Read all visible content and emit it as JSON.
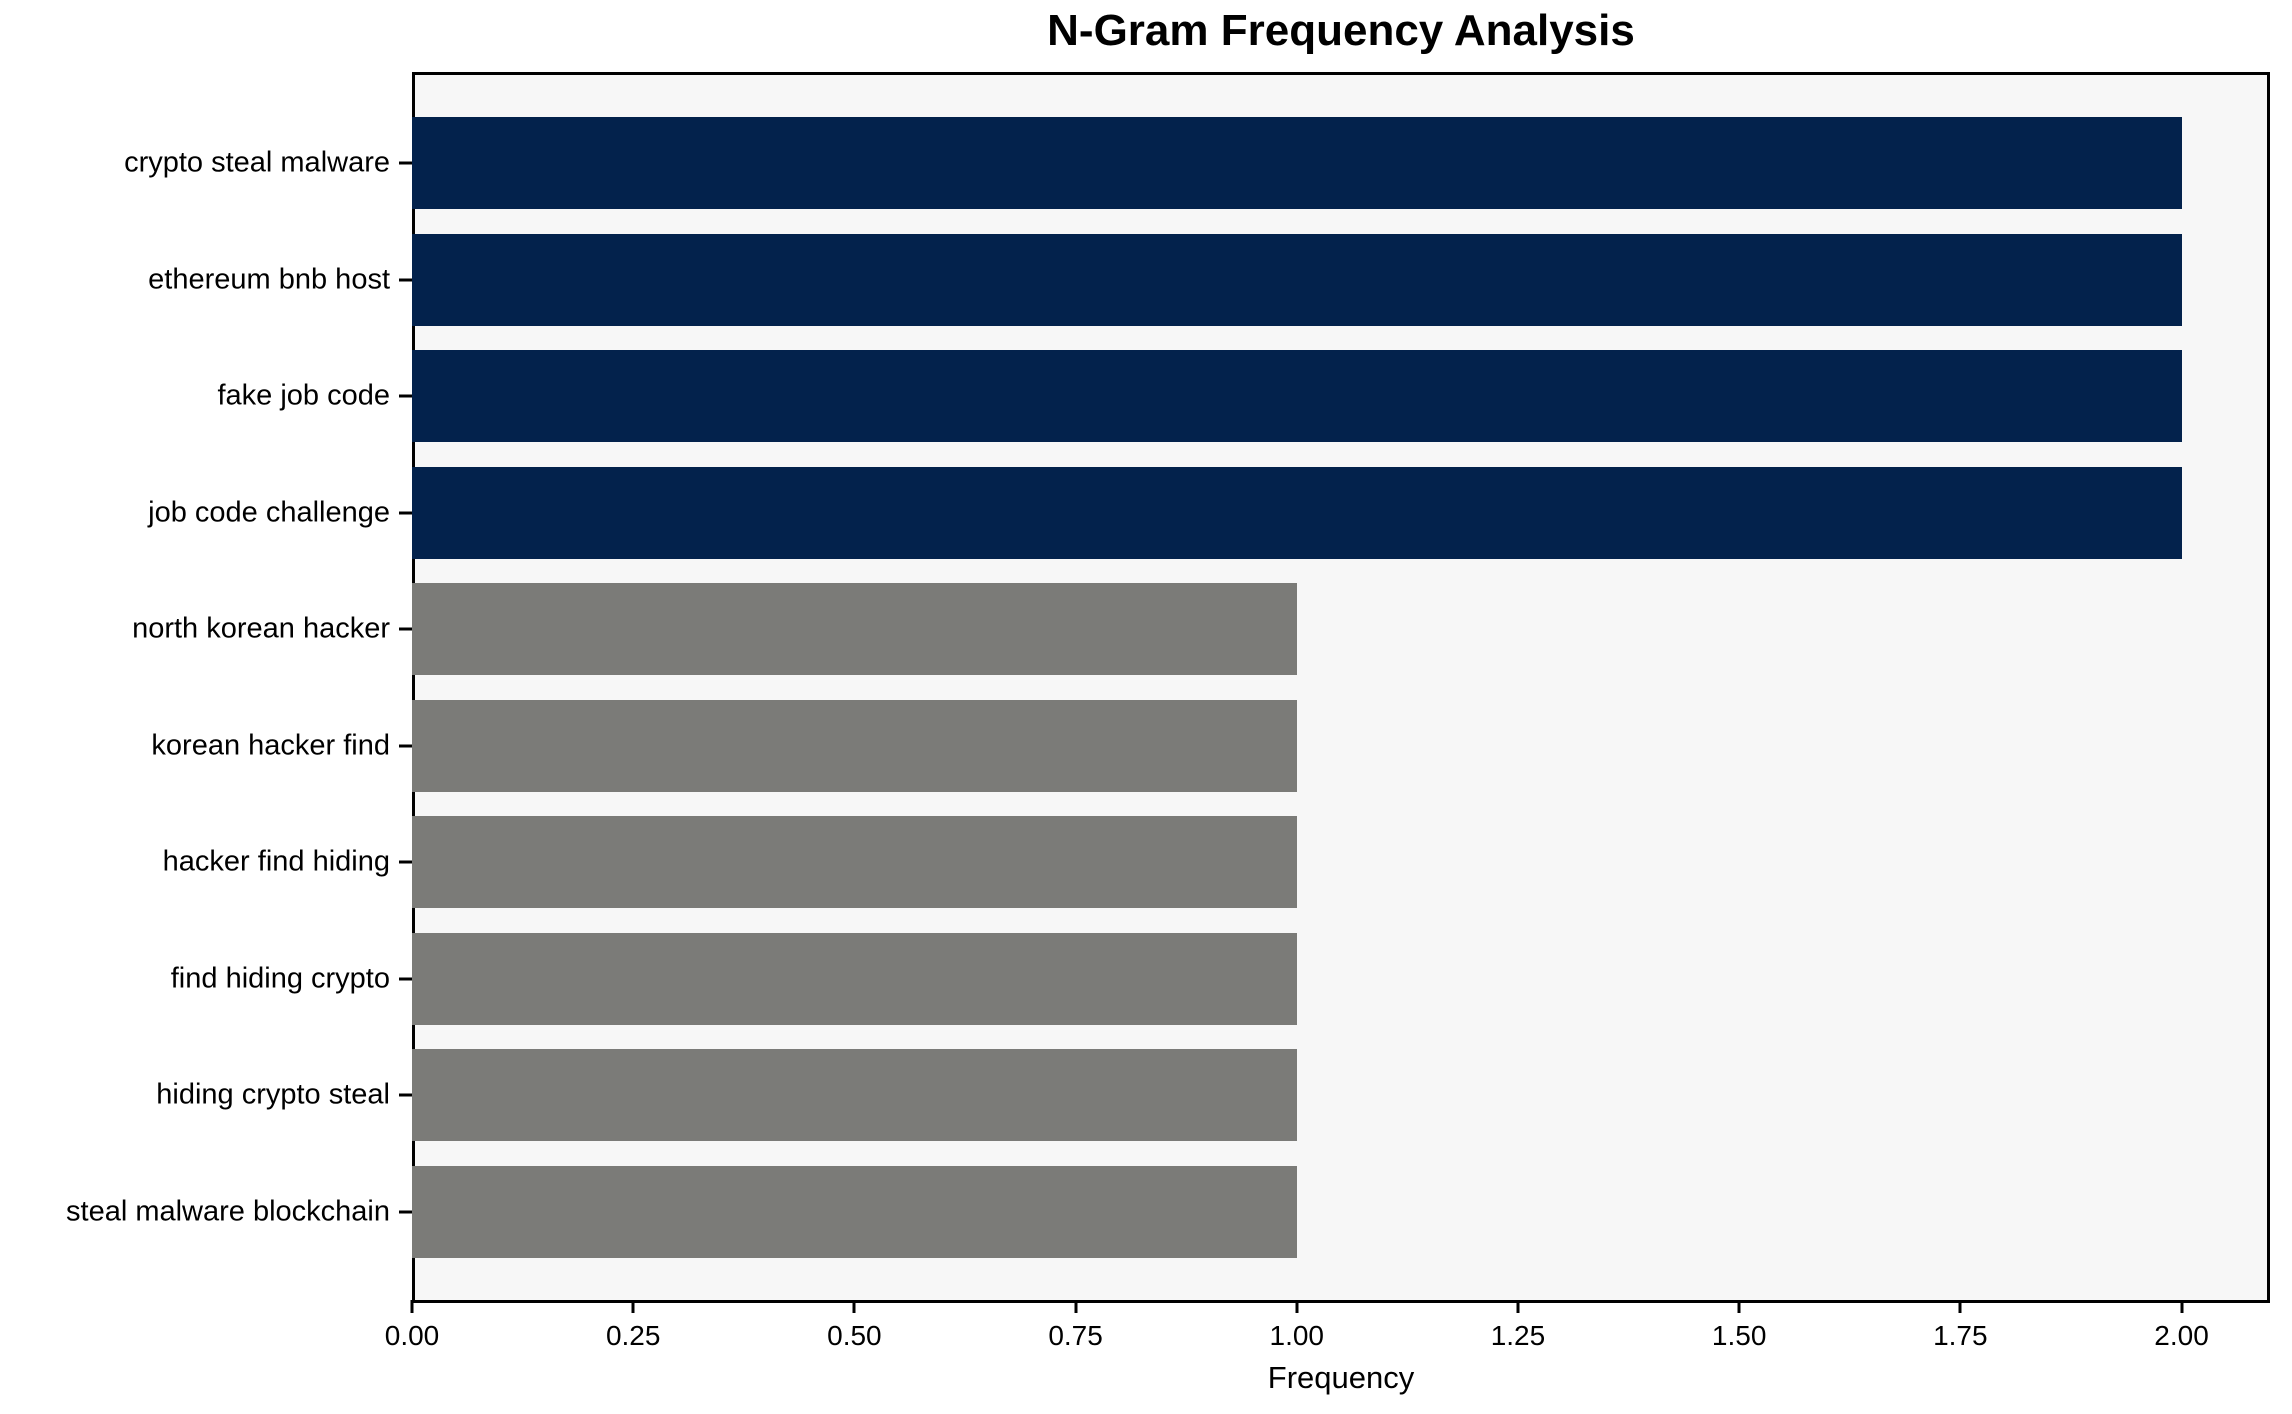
{
  "chart": {
    "title": "N-Gram Frequency Analysis",
    "xlabel": "Frequency"
  },
  "chart_data": {
    "type": "bar",
    "orientation": "horizontal",
    "title": "N-Gram Frequency Analysis",
    "xlabel": "Frequency",
    "ylabel": "",
    "categories": [
      "crypto steal malware",
      "ethereum bnb host",
      "fake job code",
      "job code challenge",
      "north korean hacker",
      "korean hacker find",
      "hacker find hiding",
      "find hiding crypto",
      "hiding crypto steal",
      "steal malware blockchain"
    ],
    "values": [
      2,
      2,
      2,
      2,
      1,
      1,
      1,
      1,
      1,
      1
    ],
    "bar_colors": [
      "#03224c",
      "#03224c",
      "#03224c",
      "#03224c",
      "#7b7b78",
      "#7b7b78",
      "#7b7b78",
      "#7b7b78",
      "#7b7b78",
      "#7b7b78"
    ],
    "xlim": [
      0,
      2.1
    ],
    "x_ticks": [
      0,
      0.25,
      0.5,
      0.75,
      1.0,
      1.25,
      1.5,
      1.75,
      2.0
    ],
    "x_tick_labels": [
      "0.00",
      "0.25",
      "0.50",
      "0.75",
      "1.00",
      "1.25",
      "1.50",
      "1.75",
      "2.00"
    ],
    "grid": false,
    "legend": "none",
    "colors": {
      "highlight_bar": "#03224c",
      "default_bar": "#7b7b78",
      "plot_background": "#f7f7f7",
      "figure_background": "#ffffff",
      "spine": "#000000",
      "text": "#000000"
    }
  }
}
